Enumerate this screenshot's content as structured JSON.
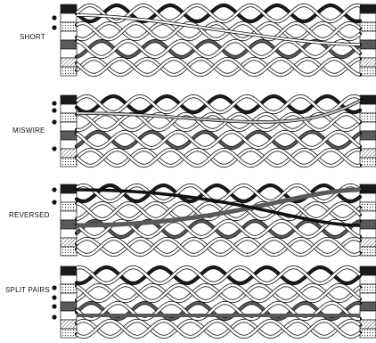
{
  "panels": [
    {
      "label": "SHORT",
      "fault_dots": 2,
      "faults": [
        {
          "type": "short",
          "pins": [
            1,
            2
          ]
        }
      ],
      "conductors": 8
    },
    {
      "label": "MISWIRE",
      "fault_dots": 4,
      "faults": [
        {
          "type": "miswire",
          "from": 1,
          "to": 3
        },
        {
          "type": "miswire",
          "from": 3,
          "to": 2
        }
      ],
      "conductors": 8
    },
    {
      "label": "REVERSED",
      "fault_dots": 2,
      "faults": [
        {
          "type": "reversed",
          "pins": [
            1,
            2
          ]
        }
      ],
      "conductors": 8
    },
    {
      "label": "SPLIT PAIRS",
      "fault_dots": 4,
      "faults": [
        {
          "type": "split",
          "pins": [
            3,
            6
          ]
        }
      ],
      "conductors": 8
    }
  ],
  "colors": {
    "ink": "#111111",
    "solid_fill": "#1a1a1a",
    "gray_fill": "#5a5a5a",
    "stipple_fill": "#b8b8b8",
    "white_fill": "#ffffff"
  }
}
